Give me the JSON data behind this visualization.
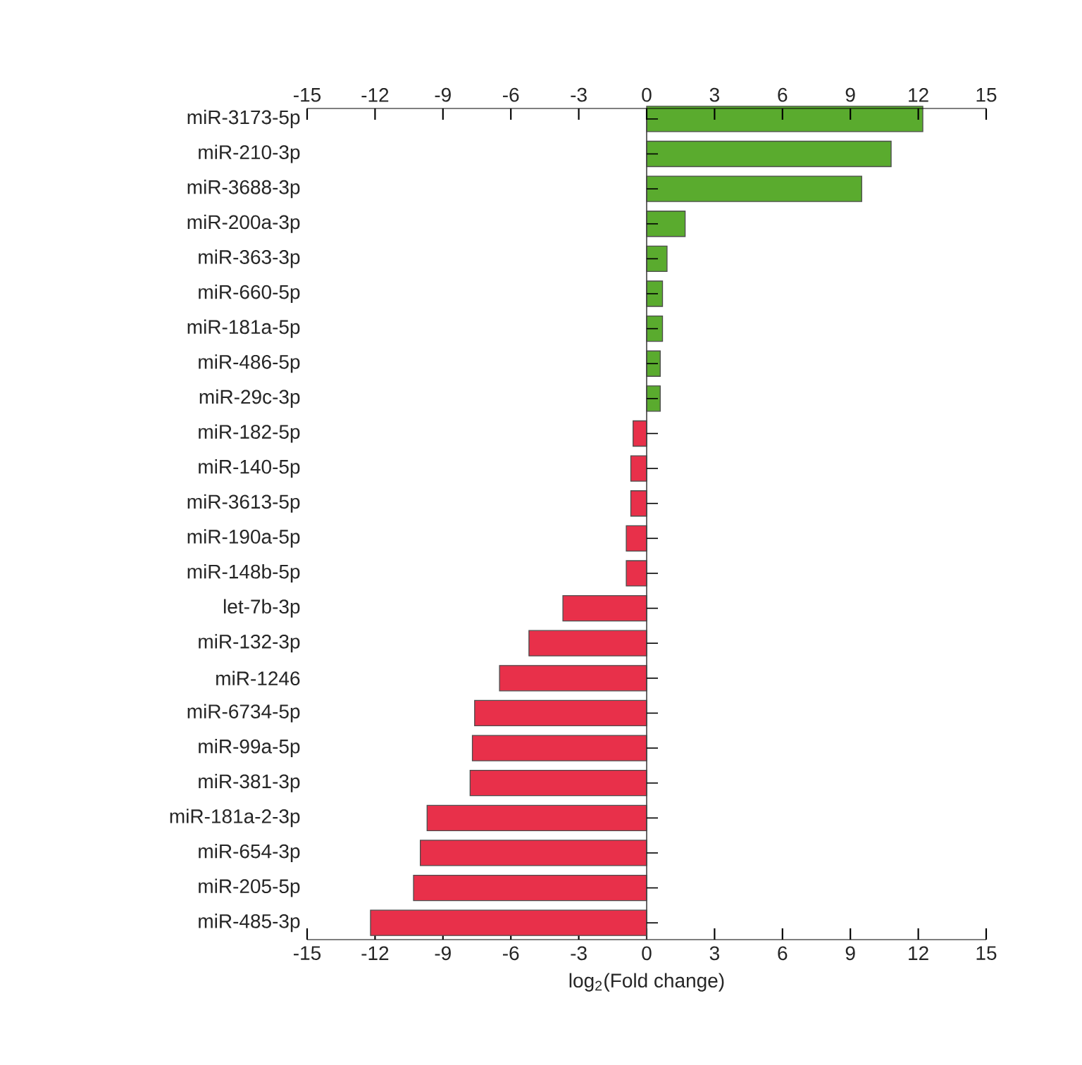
{
  "chart_data": {
    "type": "bar",
    "orientation": "horizontal",
    "xlabel": "log$_{2}$(Fold change)",
    "categories": [
      "miR-3173-5p",
      "miR-210-3p",
      "miR-3688-3p",
      "miR-200a-3p",
      "miR-363-3p",
      "miR-660-5p",
      "miR-181a-5p",
      "miR-486-5p",
      "miR-29c-3p",
      "miR-182-5p",
      "miR-140-5p",
      "miR-3613-5p",
      "miR-190a-5p",
      "miR-148b-5p",
      "let-7b-3p",
      "miR-132-3p",
      "miR-1246",
      "miR-6734-5p",
      "miR-99a-5p",
      "miR-381-3p",
      "miR-181a-2-3p",
      "miR-654-3p",
      "miR-205-5p",
      "miR-485-3p"
    ],
    "values": [
      12.2,
      10.8,
      9.5,
      1.7,
      0.9,
      0.7,
      0.7,
      0.6,
      0.6,
      -0.6,
      -0.7,
      -0.7,
      -0.9,
      -0.9,
      -3.7,
      -5.2,
      -6.5,
      -7.6,
      -7.7,
      -7.8,
      -9.7,
      -10.0,
      -10.3,
      -12.2
    ],
    "colors": [
      "#5aab2e",
      "#5aab2e",
      "#5aab2e",
      "#5aab2e",
      "#5aab2e",
      "#5aab2e",
      "#5aab2e",
      "#5aab2e",
      "#5aab2e",
      "#e8304a",
      "#e8304a",
      "#e8304a",
      "#e8304a",
      "#e8304a",
      "#e8304a",
      "#e8304a",
      "#e8304a",
      "#e8304a",
      "#e8304a",
      "#e8304a",
      "#e8304a",
      "#e8304a",
      "#e8304a",
      "#e8304a"
    ],
    "xlim": [
      -15,
      15
    ],
    "xticks": [
      -15,
      -12,
      -9,
      -6,
      -3,
      0,
      3,
      6,
      9,
      12,
      15
    ],
    "x2lim": [
      -15,
      15
    ],
    "x2ticks": [
      -15,
      -12,
      -9,
      -6,
      -3,
      0,
      3,
      6,
      9,
      12,
      15
    ]
  }
}
